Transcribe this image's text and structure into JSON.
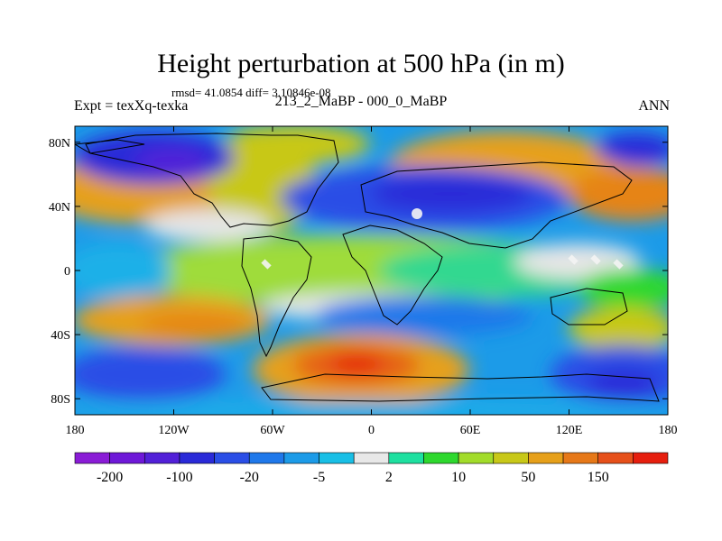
{
  "title": "Height perturbation at 500 hPa (in m)",
  "stats": "rmsd= 41.0854  diff= 3.10846e-08",
  "left_label": "Expt = texXq-texka",
  "center_label": "213_2_MaBP - 000_0_MaBP",
  "right_label": "ANN",
  "map": {
    "lon_range": [
      -180,
      180
    ],
    "lat_range": [
      -90,
      90
    ],
    "y_ticks": [
      {
        "lat": 80,
        "label": "80N"
      },
      {
        "lat": 40,
        "label": "40N"
      },
      {
        "lat": 0,
        "label": "0"
      },
      {
        "lat": -40,
        "label": "40S"
      },
      {
        "lat": -80,
        "label": "80S"
      }
    ],
    "x_ticks": [
      {
        "lon": -180,
        "label": "180"
      },
      {
        "lon": -120,
        "label": "120W"
      },
      {
        "lon": -60,
        "label": "60W"
      },
      {
        "lon": 0,
        "label": "0"
      },
      {
        "lon": 60,
        "label": "60E"
      },
      {
        "lon": 120,
        "label": "120E"
      },
      {
        "lon": 180,
        "label": "180"
      }
    ]
  },
  "colorbar": {
    "colors": [
      "#8a1cd6",
      "#6e18d8",
      "#5220d8",
      "#2a2ad8",
      "#2a4ee6",
      "#1f78ea",
      "#1c9be8",
      "#18bfe6",
      "#e8e8e8",
      "#1ee0a0",
      "#2ed82e",
      "#a2dc2a",
      "#c8c818",
      "#e6a01a",
      "#e67818",
      "#e6501a",
      "#e61e0e"
    ],
    "labels": [
      "-200",
      "-100",
      "-20",
      "-5",
      "2",
      "10",
      "50",
      "150"
    ]
  }
}
